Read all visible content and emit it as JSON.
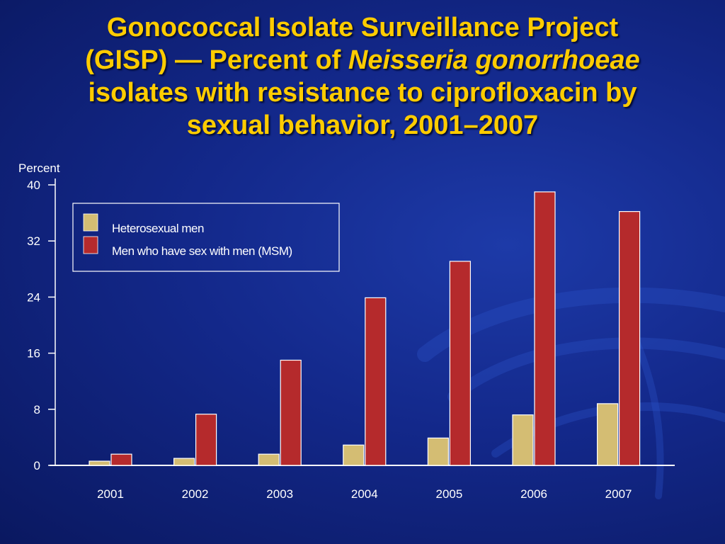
{
  "title": {
    "line1": "Gonococcal Isolate Surveillance Project",
    "line2_pre": "(GISP) — Percent of ",
    "line2_italic": "Neisseria gonorrhoeae",
    "line3": "isolates with resistance to ciprofloxacin by",
    "line4": "sexual behavior, 2001–2007"
  },
  "colors": {
    "heterosexual": "#d4bd73",
    "msm": "#b52a2c",
    "axis": "#ffffff",
    "title": "#ffcc00"
  },
  "chart_data": {
    "type": "bar",
    "ylabel": "Percent",
    "ylim": [
      0,
      40
    ],
    "yticks": [
      "0",
      "8",
      "16",
      "24",
      "32",
      "40"
    ],
    "categories": [
      "2001",
      "2002",
      "2003",
      "2004",
      "2005",
      "2006",
      "2007"
    ],
    "series": [
      {
        "name": "Heterosexual men",
        "values": [
          0.6,
          1.0,
          1.6,
          2.9,
          3.9,
          7.2,
          8.8
        ]
      },
      {
        "name": "Men who have sex with men (MSM)",
        "values": [
          1.6,
          7.3,
          15.0,
          23.9,
          29.1,
          39.0,
          36.2
        ]
      }
    ],
    "legend": "top-left"
  }
}
